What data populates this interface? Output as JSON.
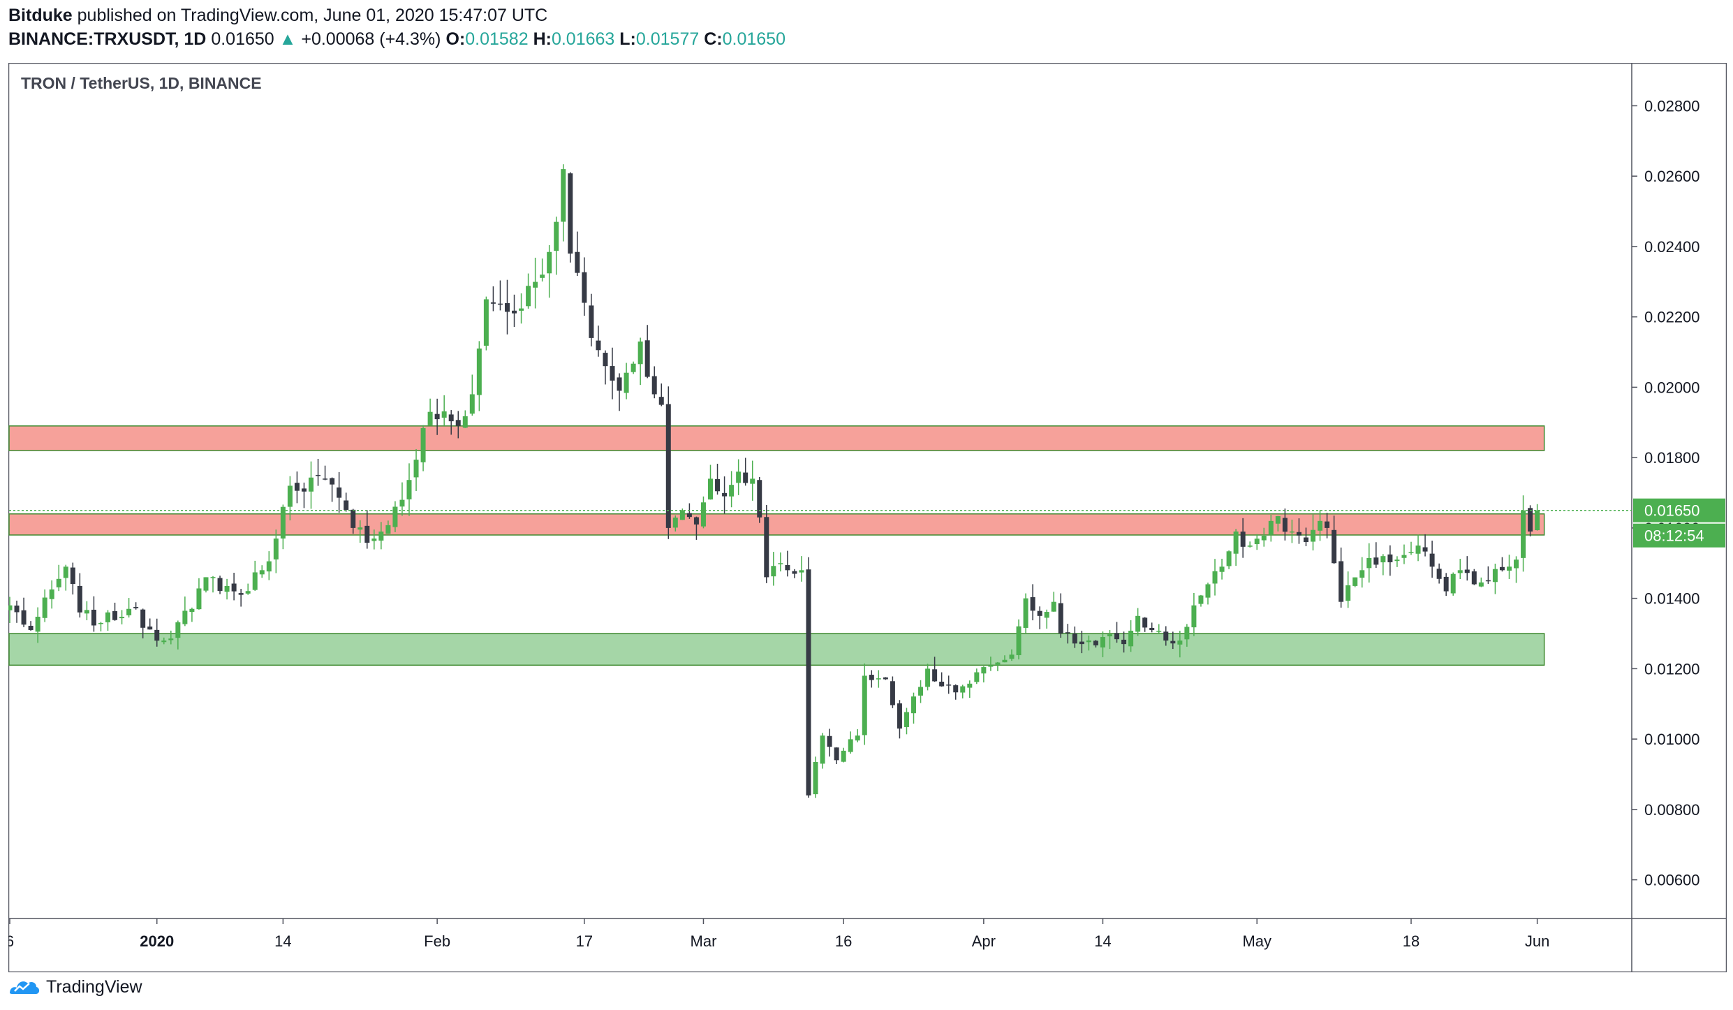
{
  "header": {
    "author": "Bitduke",
    "published_text": "published on TradingView.com, June 01, 2020 15:47:07 UTC",
    "symbol": "BINANCE:TRXUSDT, 1D",
    "last": "0.01650",
    "arrow": "▲",
    "change": "+0.00068 (+4.3%)",
    "o_label": "O:",
    "o_value": "0.01582",
    "h_label": "H:",
    "h_value": "0.01663",
    "l_label": "L:",
    "l_value": "0.01577",
    "c_label": "C:",
    "c_value": "0.01650"
  },
  "footer": {
    "brand": "TradingView",
    "icon": "tradingview-logo-icon"
  },
  "colors": {
    "up": "#4caf50",
    "down": "#363a45",
    "resistance": "#f6a19a",
    "resistance_border": "#3f8a30",
    "support": "#a5d6a7",
    "support_border": "#3f8a30",
    "price_line": "#4caf50",
    "accent_text": "#26a69a"
  },
  "chart_data": {
    "type": "candlestick",
    "title": "TRON / TetherUS, 1D, BINANCE",
    "ylim": [
      0.0049,
      0.0292
    ],
    "y_ticks": [
      "0.02800",
      "0.02600",
      "0.02400",
      "0.02200",
      "0.02000",
      "0.01800",
      "0.01600",
      "0.01400",
      "0.01200",
      "0.01000",
      "0.00800",
      "0.00600"
    ],
    "x_ticks": [
      {
        "label": "6",
        "index": 0
      },
      {
        "label": "2020",
        "index": 21,
        "bold": true
      },
      {
        "label": "14",
        "index": 39
      },
      {
        "label": "Feb",
        "index": 61
      },
      {
        "label": "17",
        "index": 82
      },
      {
        "label": "Mar",
        "index": 99
      },
      {
        "label": "16",
        "index": 119
      },
      {
        "label": "Apr",
        "index": 139
      },
      {
        "label": "14",
        "index": 156
      },
      {
        "label": "May",
        "index": 178
      },
      {
        "label": "18",
        "index": 200
      },
      {
        "label": "Jun",
        "index": 218
      }
    ],
    "bars_total": 232,
    "last_price": "0.01650",
    "countdown": "08:12:54",
    "zones": [
      {
        "name": "resistance-zone-upper",
        "low": 0.0182,
        "high": 0.0189,
        "color": "#f6a19a",
        "end_index": 219
      },
      {
        "name": "resistance-zone-lower",
        "low": 0.0158,
        "high": 0.0164,
        "color": "#f6a19a",
        "end_index": 219
      },
      {
        "name": "support-zone",
        "low": 0.0121,
        "high": 0.013,
        "color": "#a5d6a7",
        "end_index": 219
      }
    ],
    "series": [
      {
        "name": "TRXUSDT",
        "anchors": [
          [
            0,
            0.0138
          ],
          [
            3,
            0.0131
          ],
          [
            8,
            0.0149
          ],
          [
            10,
            0.0136
          ],
          [
            13,
            0.0133
          ],
          [
            17,
            0.0137
          ],
          [
            22,
            0.0128
          ],
          [
            26,
            0.0137
          ],
          [
            28,
            0.0146
          ],
          [
            33,
            0.0141
          ],
          [
            36,
            0.0148
          ],
          [
            38,
            0.0157
          ],
          [
            40,
            0.0172
          ],
          [
            45,
            0.0174
          ],
          [
            49,
            0.016
          ],
          [
            52,
            0.0157
          ],
          [
            56,
            0.0168
          ],
          [
            60,
            0.0193
          ],
          [
            64,
            0.0189
          ],
          [
            66,
            0.0198
          ],
          [
            67,
            0.0211
          ],
          [
            68,
            0.0225
          ],
          [
            72,
            0.0221
          ],
          [
            76,
            0.0232
          ],
          [
            78,
            0.0247
          ],
          [
            79,
            0.0262
          ],
          [
            80,
            0.0238
          ],
          [
            82,
            0.0224
          ],
          [
            83,
            0.0214
          ],
          [
            85,
            0.0206
          ],
          [
            87,
            0.0199
          ],
          [
            90,
            0.0213
          ],
          [
            92,
            0.0198
          ],
          [
            93,
            0.0195
          ],
          [
            94,
            0.016
          ],
          [
            96,
            0.0165
          ],
          [
            98,
            0.0161
          ],
          [
            100,
            0.0174
          ],
          [
            102,
            0.0169
          ],
          [
            104,
            0.0176
          ],
          [
            106,
            0.0174
          ],
          [
            107,
            0.0163
          ],
          [
            108,
            0.0146
          ],
          [
            110,
            0.015
          ],
          [
            113,
            0.0148
          ],
          [
            114,
            0.0084
          ],
          [
            116,
            0.0101
          ],
          [
            118,
            0.0094
          ],
          [
            121,
            0.0101
          ],
          [
            122,
            0.0118
          ],
          [
            125,
            0.0117
          ],
          [
            127,
            0.0103
          ],
          [
            131,
            0.012
          ],
          [
            133,
            0.0115
          ],
          [
            136,
            0.0115
          ],
          [
            140,
            0.0121
          ],
          [
            143,
            0.0124
          ],
          [
            145,
            0.014
          ],
          [
            147,
            0.0135
          ],
          [
            149,
            0.0139
          ],
          [
            150,
            0.013
          ],
          [
            153,
            0.0127
          ],
          [
            156,
            0.0129
          ],
          [
            159,
            0.0127
          ],
          [
            161,
            0.0135
          ],
          [
            163,
            0.0131
          ],
          [
            165,
            0.0128
          ],
          [
            167,
            0.0128
          ],
          [
            169,
            0.0138
          ],
          [
            171,
            0.0144
          ],
          [
            173,
            0.0149
          ],
          [
            175,
            0.0159
          ],
          [
            177,
            0.0155
          ],
          [
            180,
            0.0162
          ],
          [
            183,
            0.0159
          ],
          [
            185,
            0.0156
          ],
          [
            187,
            0.0162
          ],
          [
            188,
            0.016
          ],
          [
            189,
            0.015
          ],
          [
            190,
            0.0139
          ],
          [
            193,
            0.0148
          ],
          [
            196,
            0.0152
          ],
          [
            198,
            0.0151
          ],
          [
            201,
            0.0155
          ],
          [
            203,
            0.0149
          ],
          [
            205,
            0.0142
          ],
          [
            207,
            0.0148
          ],
          [
            209,
            0.0144
          ],
          [
            211,
            0.0145
          ],
          [
            213,
            0.0148
          ],
          [
            215,
            0.0151
          ],
          [
            216,
            0.0165
          ],
          [
            217,
            0.0159
          ],
          [
            218,
            0.0165
          ]
        ]
      }
    ]
  }
}
